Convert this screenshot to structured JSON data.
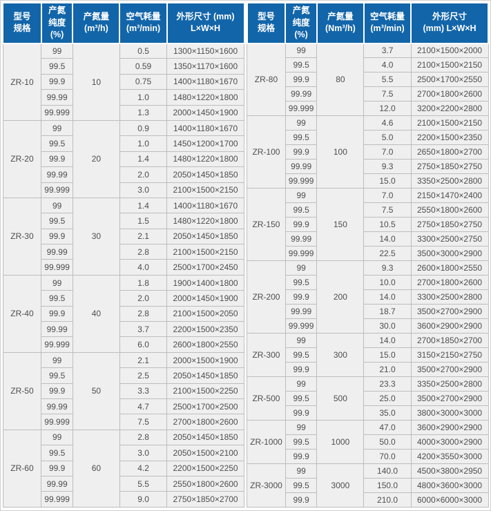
{
  "colors": {
    "header_bg": "#1265a9",
    "header_text": "#ffffff",
    "cell_bg": "#efefef",
    "cell_text": "#4d4d4d",
    "border": "#bdbdbd",
    "group_border": "#a6a6a6",
    "outer_border": "#cfcfcf"
  },
  "tables": [
    {
      "name": "spec-table-left",
      "headers": [
        "型号\n规格",
        "产氮\n纯度\n(%)",
        "产氮量\n(m³/h)",
        "空气耗量\n(m³/min)",
        "外形尺寸 (mm)\nL×W×H"
      ],
      "groups": [
        {
          "model": "ZR-10",
          "capacity": "10",
          "rows": [
            [
              "99",
              "0.5",
              "1300×1150×1600"
            ],
            [
              "99.5",
              "0.59",
              "1350×1170×1600"
            ],
            [
              "99.9",
              "0.75",
              "1400×1180×1670"
            ],
            [
              "99.99",
              "1.0",
              "1480×1220×1800"
            ],
            [
              "99.999",
              "1.3",
              "2000×1450×1900"
            ]
          ]
        },
        {
          "model": "ZR-20",
          "capacity": "20",
          "rows": [
            [
              "99",
              "0.9",
              "1400×1180×1670"
            ],
            [
              "99.5",
              "1.0",
              "1450×1200×1700"
            ],
            [
              "99.9",
              "1.4",
              "1480×1220×1800"
            ],
            [
              "99.99",
              "2.0",
              "2050×1450×1850"
            ],
            [
              "99.999",
              "3.0",
              "2100×1500×2150"
            ]
          ]
        },
        {
          "model": "ZR-30",
          "capacity": "30",
          "rows": [
            [
              "99",
              "1.4",
              "1400×1180×1670"
            ],
            [
              "99.5",
              "1.5",
              "1480×1220×1800"
            ],
            [
              "99.9",
              "2.1",
              "2050×1450×1850"
            ],
            [
              "99.99",
              "2.8",
              "2100×1500×2150"
            ],
            [
              "99.999",
              "4.0",
              "2500×1700×2450"
            ]
          ]
        },
        {
          "model": "ZR-40",
          "capacity": "40",
          "rows": [
            [
              "99",
              "1.8",
              "1900×1400×1800"
            ],
            [
              "99.5",
              "2.0",
              "2000×1450×1900"
            ],
            [
              "99.9",
              "2.8",
              "2100×1500×2050"
            ],
            [
              "99.99",
              "3.7",
              "2200×1500×2350"
            ],
            [
              "99.999",
              "6.0",
              "2600×1800×2550"
            ]
          ]
        },
        {
          "model": "ZR-50",
          "capacity": "50",
          "rows": [
            [
              "99",
              "2.1",
              "2000×1500×1900"
            ],
            [
              "99.5",
              "2.5",
              "2050×1450×1850"
            ],
            [
              "99.9",
              "3.3",
              "2100×1500×2250"
            ],
            [
              "99.99",
              "4.7",
              "2500×1700×2500"
            ],
            [
              "99.999",
              "7.5",
              "2700×1800×2600"
            ]
          ]
        },
        {
          "model": "ZR-60",
          "capacity": "60",
          "rows": [
            [
              "99",
              "2.8",
              "2050×1450×1850"
            ],
            [
              "99.5",
              "3.0",
              "2050×1500×2100"
            ],
            [
              "99.9",
              "4.2",
              "2200×1500×2250"
            ],
            [
              "99.99",
              "5.5",
              "2550×1800×2600"
            ],
            [
              "99.999",
              "9.0",
              "2750×1850×2700"
            ]
          ]
        }
      ]
    },
    {
      "name": "spec-table-right",
      "headers": [
        "型号\n规格",
        "产氮\n纯度\n(%)",
        "产氮量\n(Nm³/h)",
        "空气耗量\n(m³/min)",
        "外形尺寸\n(mm)  L×W×H"
      ],
      "groups": [
        {
          "model": "ZR-80",
          "capacity": "80",
          "rows": [
            [
              "99",
              "3.7",
              "2100×1500×2000"
            ],
            [
              "99.5",
              "4.0",
              "2100×1500×2150"
            ],
            [
              "99.9",
              "5.5",
              "2500×1700×2550"
            ],
            [
              "99.99",
              "7.5",
              "2700×1800×2600"
            ],
            [
              "99.999",
              "12.0",
              "3200×2200×2800"
            ]
          ]
        },
        {
          "model": "ZR-100",
          "capacity": "100",
          "rows": [
            [
              "99",
              "4.6",
              "2100×1500×2150"
            ],
            [
              "99.5",
              "5.0",
              "2200×1500×2350"
            ],
            [
              "99.9",
              "7.0",
              "2650×1800×2700"
            ],
            [
              "99.99",
              "9.3",
              "2750×1850×2750"
            ],
            [
              "99.999",
              "15.0",
              "3350×2500×2800"
            ]
          ]
        },
        {
          "model": "ZR-150",
          "capacity": "150",
          "rows": [
            [
              "99",
              "7.0",
              "2150×1470×2400"
            ],
            [
              "99.5",
              "7.5",
              "2550×1800×2600"
            ],
            [
              "99.9",
              "10.5",
              "2750×1850×2750"
            ],
            [
              "99.99",
              "14.0",
              "3300×2500×2750"
            ],
            [
              "99.999",
              "22.5",
              "3500×3000×2900"
            ]
          ]
        },
        {
          "model": "ZR-200",
          "capacity": "200",
          "rows": [
            [
              "99",
              "9.3",
              "2600×1800×2550"
            ],
            [
              "99.5",
              "10.0",
              "2700×1800×2600"
            ],
            [
              "99.9",
              "14.0",
              "3300×2500×2800"
            ],
            [
              "99.99",
              "18.7",
              "3500×2700×2900"
            ],
            [
              "99.999",
              "30.0",
              "3600×2900×2900"
            ]
          ]
        },
        {
          "model": "ZR-300",
          "capacity": "300",
          "rows": [
            [
              "99",
              "14.0",
              "2700×1850×2700"
            ],
            [
              "99.5",
              "15.0",
              "3150×2150×2750"
            ],
            [
              "99.9",
              "21.0",
              "3500×2700×2900"
            ]
          ]
        },
        {
          "model": "ZR-500",
          "capacity": "500",
          "rows": [
            [
              "99",
              "23.3",
              "3350×2500×2800"
            ],
            [
              "99.5",
              "25.0",
              "3500×2700×2900"
            ],
            [
              "99.9",
              "35.0",
              "3800×3000×3000"
            ]
          ]
        },
        {
          "model": "ZR-1000",
          "capacity": "1000",
          "rows": [
            [
              "99",
              "47.0",
              "3600×2900×2900"
            ],
            [
              "99.5",
              "50.0",
              "4000×3000×2900"
            ],
            [
              "99.9",
              "70.0",
              "4200×3550×3000"
            ]
          ]
        },
        {
          "model": "ZR-3000",
          "capacity": "3000",
          "rows": [
            [
              "99",
              "140.0",
              "4500×3800×2950"
            ],
            [
              "99.5",
              "150.0",
              "4800×3600×3000"
            ],
            [
              "99.9",
              "210.0",
              "6000×6000×3000"
            ]
          ]
        }
      ]
    }
  ]
}
